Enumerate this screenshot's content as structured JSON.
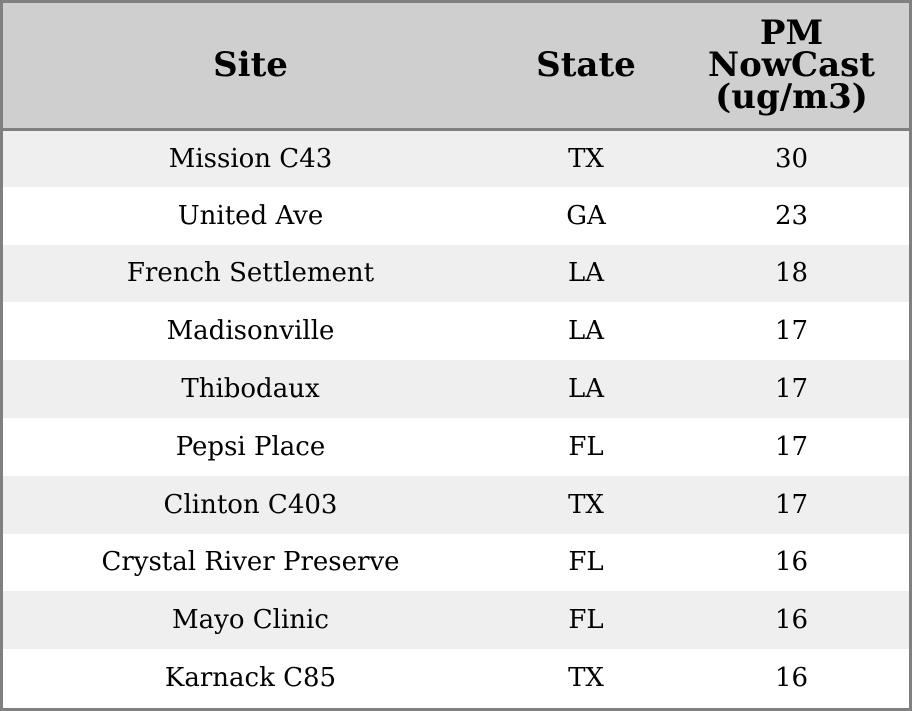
{
  "chart_data": {
    "type": "table",
    "columns": [
      "Site",
      "State",
      "PM NowCast (ug/m3)"
    ],
    "header_lines": [
      [
        "Site"
      ],
      [
        "State"
      ],
      [
        "PM",
        "NowCast",
        "(ug/m3)"
      ]
    ],
    "rows": [
      [
        "Mission C43",
        "TX",
        "30"
      ],
      [
        "United Ave",
        "GA",
        "23"
      ],
      [
        "French Settlement",
        "LA",
        "18"
      ],
      [
        "Madisonville",
        "LA",
        "17"
      ],
      [
        "Thibodaux",
        "LA",
        "17"
      ],
      [
        "Pepsi Place",
        "FL",
        "17"
      ],
      [
        "Clinton C403",
        "TX",
        "17"
      ],
      [
        "Crystal River Preserve",
        "FL",
        "16"
      ],
      [
        "Mayo Clinic",
        "FL",
        "16"
      ],
      [
        "Karnack C85",
        "TX",
        "16"
      ]
    ]
  }
}
